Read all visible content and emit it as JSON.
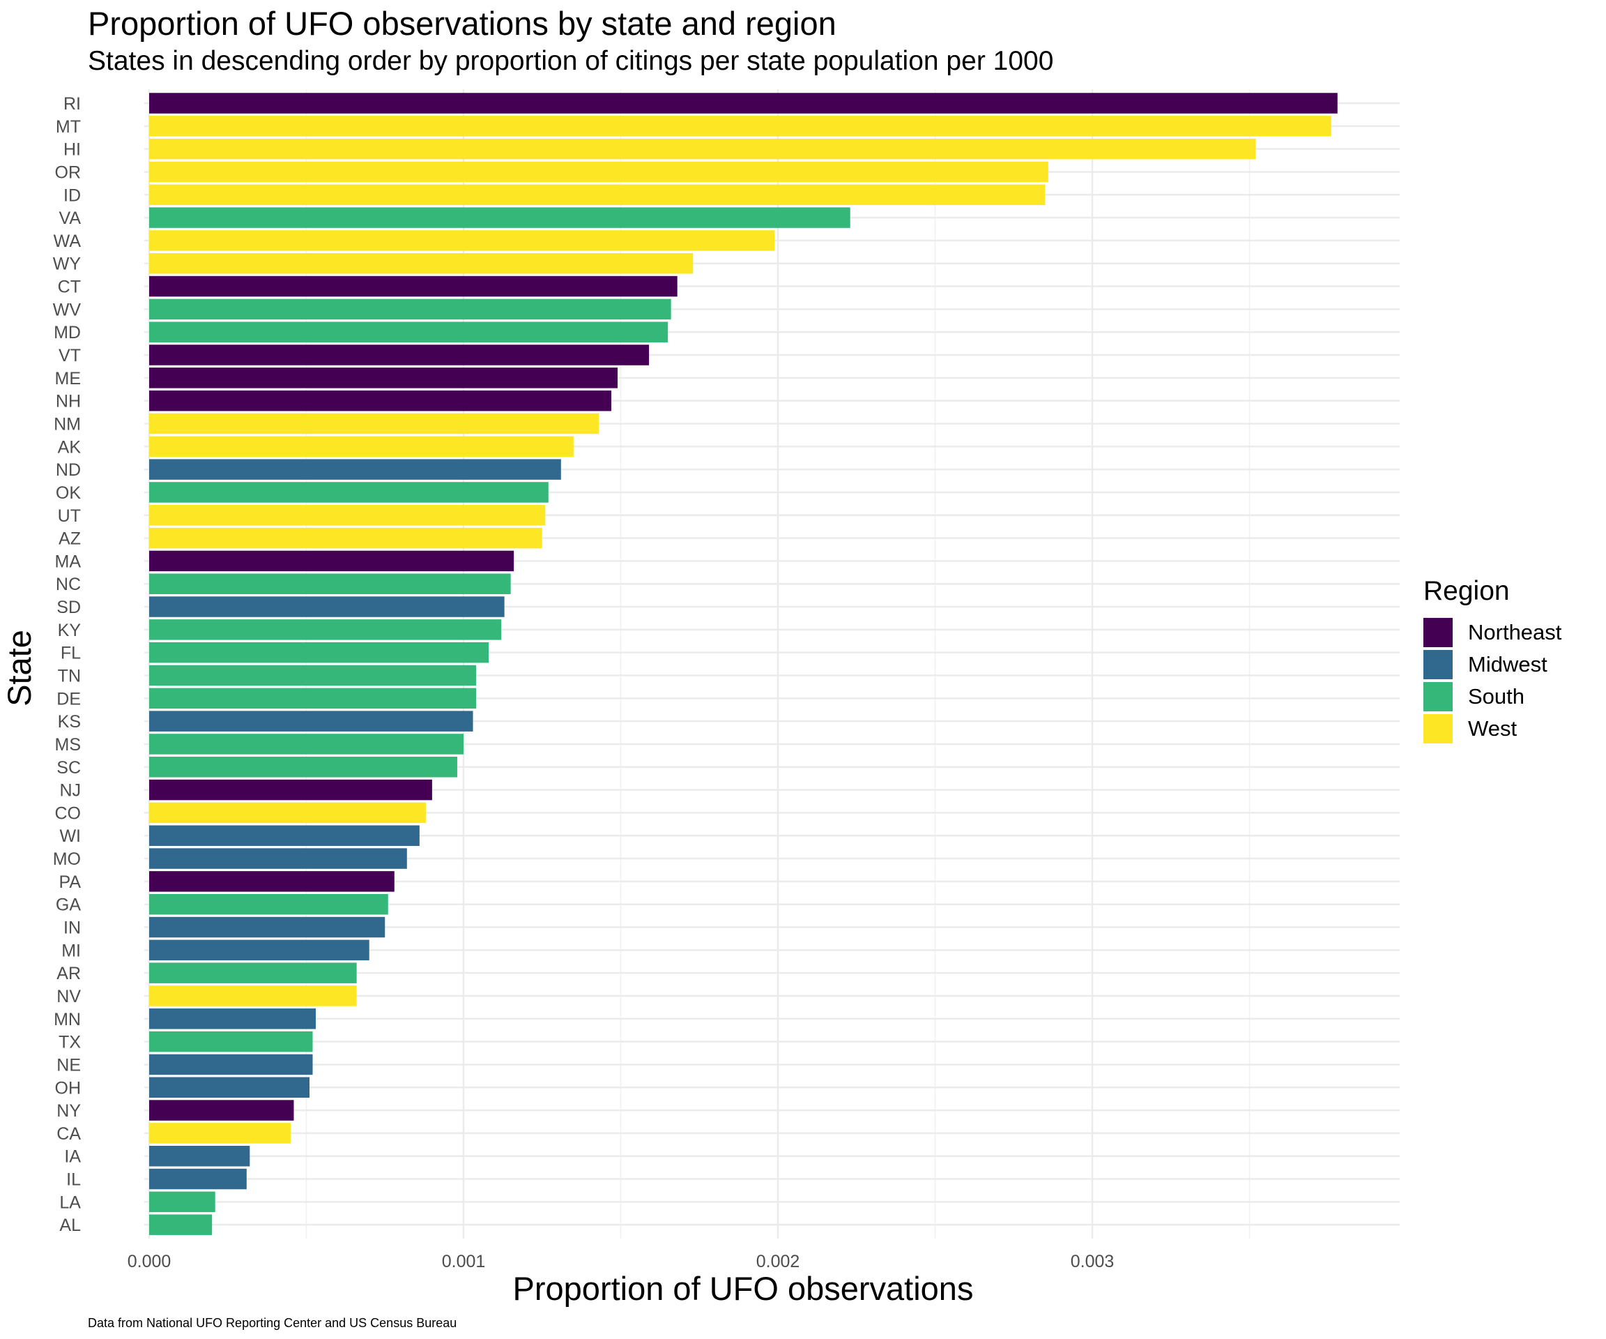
{
  "chart_data": {
    "type": "bar",
    "orientation": "horizontal",
    "title": "Proportion of UFO observations by state and region",
    "subtitle": "States in descending order by proportion of citings per state population per 1000",
    "xlabel": "Proportion of UFO observations",
    "ylabel": "State",
    "caption": "Data from National UFO Reporting Center and US Census Bureau",
    "xlim": [
      0,
      0.0039
    ],
    "xticks": [
      {
        "value": 0,
        "label": "0.000"
      },
      {
        "value": 0.001,
        "label": "0.001"
      },
      {
        "value": 0.002,
        "label": "0.002"
      },
      {
        "value": 0.003,
        "label": "0.003"
      }
    ],
    "grid": true,
    "legend_position": "right",
    "legend": {
      "title": "Region",
      "entries": [
        {
          "name": "Northeast",
          "color": "#440154"
        },
        {
          "name": "Midwest",
          "color": "#31688e"
        },
        {
          "name": "South",
          "color": "#35b779"
        },
        {
          "name": "West",
          "color": "#fde725"
        }
      ]
    },
    "bars": [
      {
        "state": "RI",
        "region": "Northeast",
        "value": 0.00378
      },
      {
        "state": "MT",
        "region": "West",
        "value": 0.00376
      },
      {
        "state": "HI",
        "region": "West",
        "value": 0.00352
      },
      {
        "state": "OR",
        "region": "West",
        "value": 0.00286
      },
      {
        "state": "ID",
        "region": "West",
        "value": 0.00285
      },
      {
        "state": "VA",
        "region": "South",
        "value": 0.00223
      },
      {
        "state": "WA",
        "region": "West",
        "value": 0.00199
      },
      {
        "state": "WY",
        "region": "West",
        "value": 0.00173
      },
      {
        "state": "CT",
        "region": "Northeast",
        "value": 0.00168
      },
      {
        "state": "WV",
        "region": "South",
        "value": 0.00166
      },
      {
        "state": "MD",
        "region": "South",
        "value": 0.00165
      },
      {
        "state": "VT",
        "region": "Northeast",
        "value": 0.00159
      },
      {
        "state": "ME",
        "region": "Northeast",
        "value": 0.00149
      },
      {
        "state": "NH",
        "region": "Northeast",
        "value": 0.00147
      },
      {
        "state": "NM",
        "region": "West",
        "value": 0.00143
      },
      {
        "state": "AK",
        "region": "West",
        "value": 0.00135
      },
      {
        "state": "ND",
        "region": "Midwest",
        "value": 0.00131
      },
      {
        "state": "OK",
        "region": "South",
        "value": 0.00127
      },
      {
        "state": "UT",
        "region": "West",
        "value": 0.00126
      },
      {
        "state": "AZ",
        "region": "West",
        "value": 0.00125
      },
      {
        "state": "MA",
        "region": "Northeast",
        "value": 0.00116
      },
      {
        "state": "NC",
        "region": "South",
        "value": 0.00115
      },
      {
        "state": "SD",
        "region": "Midwest",
        "value": 0.00113
      },
      {
        "state": "KY",
        "region": "South",
        "value": 0.00112
      },
      {
        "state": "FL",
        "region": "South",
        "value": 0.00108
      },
      {
        "state": "TN",
        "region": "South",
        "value": 0.00104
      },
      {
        "state": "DE",
        "region": "South",
        "value": 0.00104
      },
      {
        "state": "KS",
        "region": "Midwest",
        "value": 0.00103
      },
      {
        "state": "MS",
        "region": "South",
        "value": 0.001
      },
      {
        "state": "SC",
        "region": "South",
        "value": 0.00098
      },
      {
        "state": "NJ",
        "region": "Northeast",
        "value": 0.0009
      },
      {
        "state": "CO",
        "region": "West",
        "value": 0.00088
      },
      {
        "state": "WI",
        "region": "Midwest",
        "value": 0.00086
      },
      {
        "state": "MO",
        "region": "Midwest",
        "value": 0.00082
      },
      {
        "state": "PA",
        "region": "Northeast",
        "value": 0.00078
      },
      {
        "state": "GA",
        "region": "South",
        "value": 0.00076
      },
      {
        "state": "IN",
        "region": "Midwest",
        "value": 0.00075
      },
      {
        "state": "MI",
        "region": "Midwest",
        "value": 0.0007
      },
      {
        "state": "AR",
        "region": "South",
        "value": 0.00066
      },
      {
        "state": "NV",
        "region": "West",
        "value": 0.00066
      },
      {
        "state": "MN",
        "region": "Midwest",
        "value": 0.00053
      },
      {
        "state": "TX",
        "region": "South",
        "value": 0.00052
      },
      {
        "state": "NE",
        "region": "Midwest",
        "value": 0.00052
      },
      {
        "state": "OH",
        "region": "Midwest",
        "value": 0.00051
      },
      {
        "state": "NY",
        "region": "Northeast",
        "value": 0.00046
      },
      {
        "state": "CA",
        "region": "West",
        "value": 0.00045
      },
      {
        "state": "IA",
        "region": "Midwest",
        "value": 0.00032
      },
      {
        "state": "IL",
        "region": "Midwest",
        "value": 0.00031
      },
      {
        "state": "LA",
        "region": "South",
        "value": 0.00021
      },
      {
        "state": "AL",
        "region": "South",
        "value": 0.0002
      }
    ]
  }
}
